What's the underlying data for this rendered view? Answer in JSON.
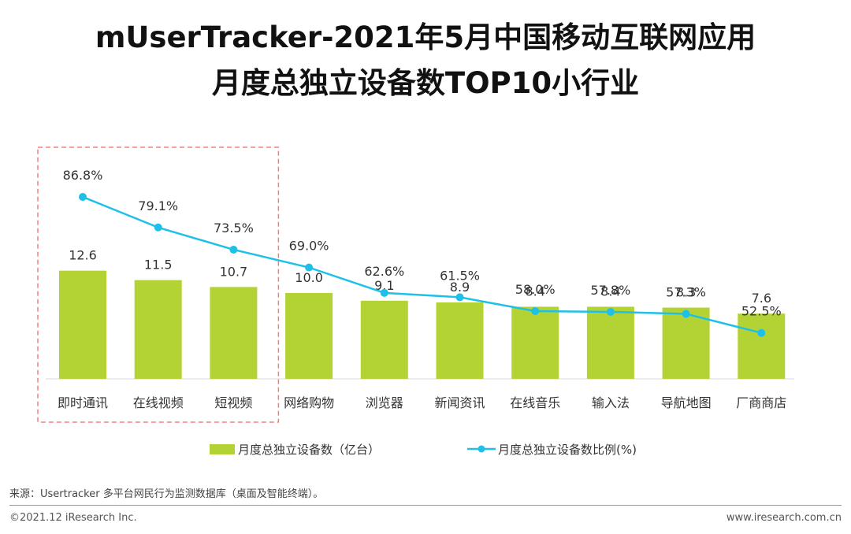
{
  "title_line1": "mUserTracker-2021年5月中国移动互联网应用",
  "title_line2": "月度总独立设备数TOP10小行业",
  "chart_data": {
    "type": "bar",
    "categories": [
      "即时通讯",
      "在线视频",
      "短视频",
      "网络购物",
      "浏览器",
      "新闻资讯",
      "在线音乐",
      "输入法",
      "导航地图",
      "厂商商店"
    ],
    "series": [
      {
        "name": "月度总独立设备数（亿台）",
        "type": "bar",
        "values": [
          12.6,
          11.5,
          10.7,
          10.0,
          9.1,
          8.9,
          8.4,
          8.4,
          8.3,
          7.6
        ],
        "labels": [
          "12.6",
          "11.5",
          "10.7",
          "10.0",
          "9.1",
          "8.9",
          "8.4",
          "8.4",
          "8.3",
          "7.6"
        ],
        "color": "#b3d335"
      },
      {
        "name": "月度总独立设备数比例(%)",
        "type": "line",
        "values": [
          86.8,
          79.1,
          73.5,
          69.0,
          62.6,
          61.5,
          58.0,
          57.8,
          57.3,
          52.5
        ],
        "labels": [
          "86.8%",
          "79.1%",
          "73.5%",
          "69.0%",
          "62.6%",
          "61.5%",
          "58.0%",
          "57.8%",
          "57.3%",
          "52.5%"
        ],
        "color": "#1ec0e8"
      }
    ],
    "highlight": [
      "即时通讯",
      "在线视频",
      "短视频"
    ],
    "highlight_color": "#f08080"
  },
  "legend": {
    "bar_label": "月度总独立设备数（亿台）",
    "line_label": "月度总独立设备数比例(%)"
  },
  "footer": {
    "source": "来源：Usertracker 多平台网民行为监测数据库（桌面及智能终端）。",
    "copyright": "©2021.12 iResearch Inc.",
    "website": "www.iresearch.com.cn"
  }
}
